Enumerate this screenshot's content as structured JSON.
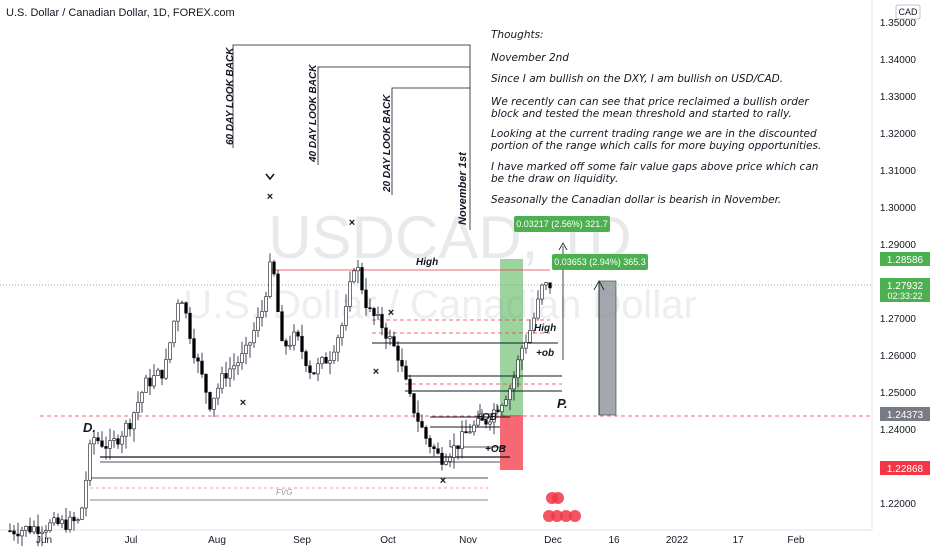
{
  "header": {
    "symbol_line": "U.S. Dollar / Canadian Dollar, 1D, FOREX.com",
    "currency_badge": "CAD"
  },
  "watermark": {
    "ticker": "USDCAD, 1D",
    "name": "U.S. Dollar / Canadian Dollar"
  },
  "notes": [
    "Thoughts:",
    "November 2nd",
    "Since I am bullish on the DXY, I am bullish on USD/CAD.",
    "We recently can can see that price reclaimed a bullish order",
    "block and tested the mean threshold and started to rally.",
    "Looking at the current trading range we are in the discounted",
    "portion of the range which calls for more buying opportunities.",
    "I have marked off some fair value gaps above price which can",
    "be the draw on liquidity.",
    "Seasonally the Canadian dollar is bearish in November."
  ],
  "lookback_labels": [
    "60 DAY LOOK BACK",
    "40  DAY LOOK BACK",
    "20 DAY LOOK BACK",
    "November 1st"
  ],
  "annotations": {
    "high_label": "High",
    "high_label_2": "High",
    "ob_plus_1": "+ob",
    "ob_plus_2": "+OB",
    "ob_plus_3": "+OB",
    "fvg": "FVG",
    "d_label": "D.",
    "p_label": "P."
  },
  "measure_boxes": {
    "upper": "0.03217 (2.56%) 321.7",
    "lower": "0.03653 (2.94%) 365.3"
  },
  "price_tags": {
    "high_tag": "1.28586",
    "current_price": "1.27932",
    "countdown": "02:33:22",
    "tag_mid": "1.24373",
    "tag_low": "1.22868"
  },
  "colors": {
    "up_candle": "#ffffff",
    "down_candle": "#000000",
    "green_zone": "#4caf50",
    "red_zone": "#f23645",
    "grey_box": "#787b86",
    "dashed_red": "#f23645",
    "current_line": "#4caf50"
  },
  "chart_data": {
    "type": "candlestick",
    "yaxis": {
      "ticks": [
        "1.35000",
        "1.34000",
        "1.33000",
        "1.32000",
        "1.31000",
        "1.30000",
        "1.29000",
        "1.28000",
        "1.27000",
        "1.26000",
        "1.25000",
        "1.24000",
        "1.23000",
        "1.22000"
      ],
      "min": 1.2125,
      "max": 1.3535,
      "position": "right"
    },
    "xaxis": {
      "ticks": [
        "Jun",
        "Jul",
        "Aug",
        "Sep",
        "Oct",
        "Nov",
        "Dec",
        "16",
        "2022",
        "17",
        "Feb"
      ]
    },
    "grid": false,
    "levels": {
      "range_high": 1.2897,
      "current": 1.27932,
      "discount_line": 1.24373,
      "ob_upper": 1.2702,
      "ob_lower": 1.2662
    },
    "candles": []
  }
}
